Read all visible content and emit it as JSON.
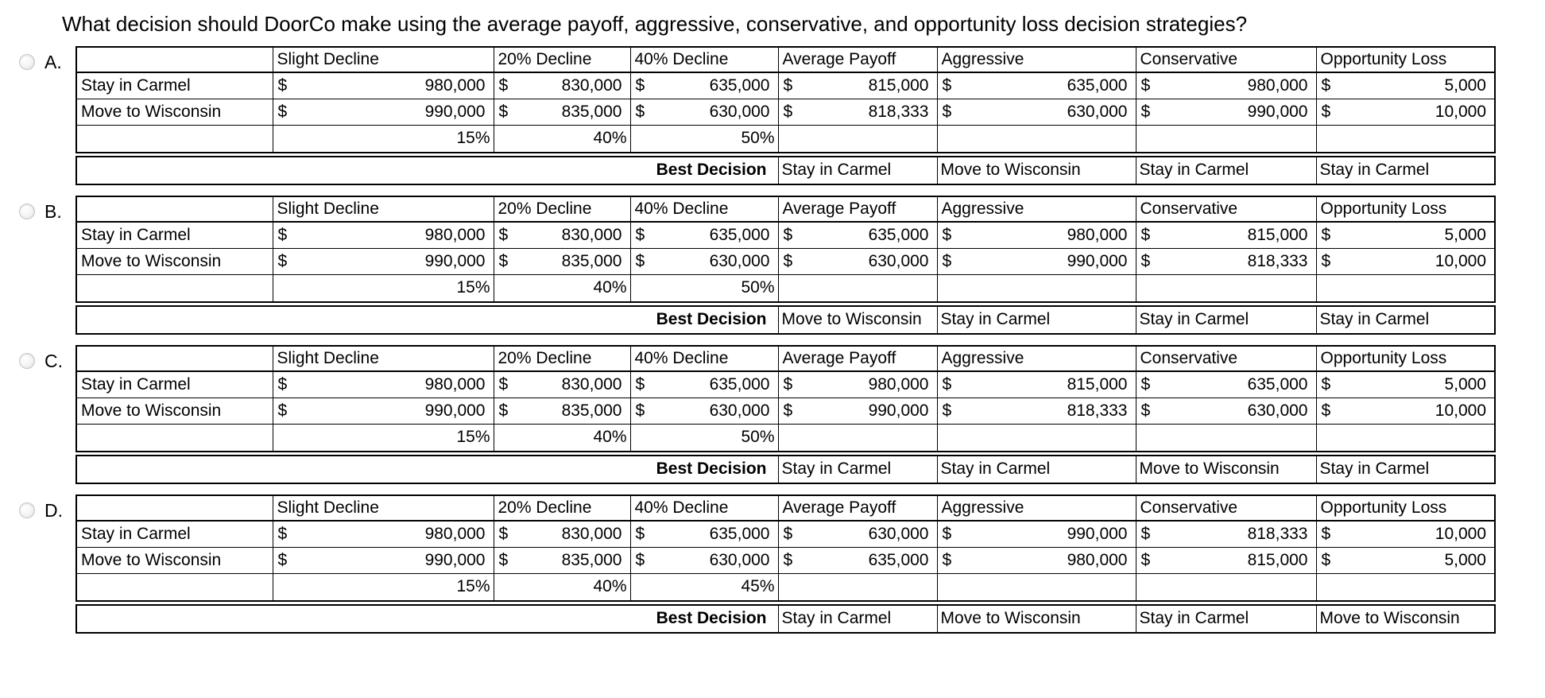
{
  "question": {
    "text": "What decision should DoorCo make using the average payoff, aggressive, conservative, and opportunity loss decision strategies?"
  },
  "currency_symbol": "$",
  "table": {
    "column_headers": [
      "Slight Decline",
      "20% Decline",
      "40% Decline",
      "Average Payoff",
      "Aggressive",
      "Conservative",
      "Opportunity Loss"
    ],
    "row_labels": [
      "Stay in Carmel",
      "Move to Wisconsin"
    ],
    "best_decision_label": "Best Decision"
  },
  "options": [
    {
      "letter": "A.",
      "selected": false,
      "payoffs": {
        "stay_in_carmel": [
          "980,000",
          "830,000",
          "635,000",
          "815,000",
          "635,000",
          "980,000",
          "5,000"
        ],
        "move_to_wisconsin": [
          "990,000",
          "835,000",
          "630,000",
          "818,333",
          "630,000",
          "990,000",
          "10,000"
        ]
      },
      "probabilities": [
        "15%",
        "40%",
        "50%"
      ],
      "best_decisions": [
        "Stay in Carmel",
        "Move to Wisconsin",
        "Stay in Carmel",
        "Stay in Carmel"
      ]
    },
    {
      "letter": "B.",
      "selected": false,
      "payoffs": {
        "stay_in_carmel": [
          "980,000",
          "830,000",
          "635,000",
          "635,000",
          "980,000",
          "815,000",
          "5,000"
        ],
        "move_to_wisconsin": [
          "990,000",
          "835,000",
          "630,000",
          "630,000",
          "990,000",
          "818,333",
          "10,000"
        ]
      },
      "probabilities": [
        "15%",
        "40%",
        "50%"
      ],
      "best_decisions": [
        "Move to Wisconsin",
        "Stay in Carmel",
        "Stay in Carmel",
        "Stay in Carmel"
      ]
    },
    {
      "letter": "C.",
      "selected": false,
      "payoffs": {
        "stay_in_carmel": [
          "980,000",
          "830,000",
          "635,000",
          "980,000",
          "815,000",
          "635,000",
          "5,000"
        ],
        "move_to_wisconsin": [
          "990,000",
          "835,000",
          "630,000",
          "990,000",
          "818,333",
          "630,000",
          "10,000"
        ]
      },
      "probabilities": [
        "15%",
        "40%",
        "50%"
      ],
      "best_decisions": [
        "Stay in Carmel",
        "Stay in Carmel",
        "Move to Wisconsin",
        "Stay in Carmel"
      ]
    },
    {
      "letter": "D.",
      "selected": false,
      "payoffs": {
        "stay_in_carmel": [
          "980,000",
          "830,000",
          "635,000",
          "630,000",
          "990,000",
          "818,333",
          "10,000"
        ],
        "move_to_wisconsin": [
          "990,000",
          "835,000",
          "630,000",
          "635,000",
          "980,000",
          "815,000",
          "5,000"
        ]
      },
      "probabilities": [
        "15%",
        "40%",
        "45%"
      ],
      "best_decisions": [
        "Stay in Carmel",
        "Move to Wisconsin",
        "Stay in Carmel",
        "Move to Wisconsin"
      ]
    }
  ]
}
